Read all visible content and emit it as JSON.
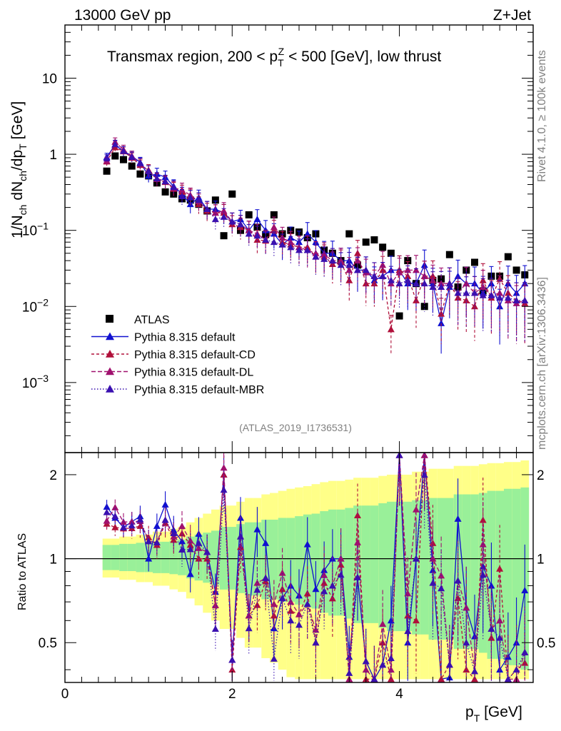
{
  "header": {
    "left": "13000 GeV pp",
    "right": "Z+Jet"
  },
  "side_labels": {
    "rivet": "Rivet 4.1.0, ≥ 100k events",
    "mcplots": "mcplots.cern.ch [arXiv:1306.3436]"
  },
  "plot_title": {
    "before": "Transmax region, 200 < p",
    "sub": "T",
    "sup": "Z",
    "after": " < 500 [GeV], low thrust"
  },
  "analysis_id": "(ATLAS_2019_I1736531)",
  "axes": {
    "ylabel_main": "1/N_ch dN_ch/dp_T [GeV]",
    "ylabel_ratio": "Ratio to ATLAS",
    "xlabel": "p_T [GeV]",
    "x_ticks": [
      "0",
      "2",
      "4"
    ],
    "x_tick_values": [
      0,
      2,
      4
    ],
    "y_ticks_main": [
      "10^-3",
      "10^-2",
      "10^-1",
      "1",
      "10"
    ],
    "y_ticks_ratio": [
      "0.5",
      "1",
      "2"
    ]
  },
  "legend": [
    {
      "label": "ATLAS",
      "color": "#000000",
      "marker": "square",
      "dash": ""
    },
    {
      "label": "Pythia 8.315 default",
      "color": "#1010d0",
      "marker": "triangle",
      "dash": ""
    },
    {
      "label": "Pythia 8.315 default-CD",
      "color": "#b0103a",
      "marker": "triangle",
      "dash": "4,3"
    },
    {
      "label": "Pythia 8.315 default-DL",
      "color": "#a0106e",
      "marker": "triangle",
      "dash": "6,3"
    },
    {
      "label": "Pythia 8.315 default-MBR",
      "color": "#3a10b0",
      "marker": "triangle",
      "dash": "1.5,2.5"
    }
  ],
  "chart_data": {
    "type": "scatter",
    "title": "Transmax region, 200 < pT^Z < 500 [GeV], low thrust",
    "xlabel": "pT [GeV]",
    "ylabel": "1/Nch dNch/dpT [GeV]",
    "xlim": [
      0,
      5.6
    ],
    "ylim": [
      0.00012,
      50
    ],
    "yscale": "log",
    "ratio_ylim": [
      0.36,
      2.4
    ],
    "x": [
      0.5,
      0.6,
      0.7,
      0.8,
      0.9,
      1.0,
      1.1,
      1.2,
      1.3,
      1.4,
      1.5,
      1.6,
      1.7,
      1.8,
      1.9,
      2.0,
      2.1,
      2.2,
      2.3,
      2.4,
      2.5,
      2.6,
      2.7,
      2.8,
      2.9,
      3.0,
      3.1,
      3.2,
      3.3,
      3.4,
      3.5,
      3.6,
      3.7,
      3.8,
      3.9,
      4.0,
      4.1,
      4.2,
      4.3,
      4.4,
      4.5,
      4.6,
      4.7,
      4.8,
      4.9,
      5.0,
      5.1,
      5.2,
      5.3,
      5.4,
      5.5
    ],
    "series": [
      {
        "name": "ATLAS",
        "values": [
          0.6,
          0.95,
          0.85,
          0.7,
          0.55,
          0.52,
          0.42,
          0.32,
          0.3,
          0.26,
          0.25,
          0.22,
          0.18,
          0.25,
          0.085,
          0.3,
          0.1,
          0.16,
          0.11,
          0.088,
          0.16,
          0.09,
          0.1,
          0.095,
          0.08,
          0.09,
          0.055,
          0.05,
          0.04,
          0.09,
          0.035,
          0.07,
          0.075,
          0.06,
          0.05,
          0.0075,
          0.04,
          0.02,
          0.01,
          0.022,
          0.023,
          0.048,
          0.018,
          0.03,
          0.038,
          0.016,
          0.025,
          0.025,
          0.045,
          0.03,
          0.026
        ]
      },
      {
        "name": "Pythia 8.315 default",
        "values": [
          0.92,
          1.33,
          1.1,
          0.95,
          0.78,
          0.52,
          0.55,
          0.5,
          0.38,
          0.3,
          0.22,
          0.27,
          0.19,
          0.19,
          0.17,
          0.13,
          0.14,
          0.1,
          0.14,
          0.1,
          0.09,
          0.065,
          0.08,
          0.07,
          0.09,
          0.07,
          0.05,
          0.05,
          0.04,
          0.04,
          0.03,
          0.03,
          0.022,
          0.025,
          0.03,
          0.03,
          0.02,
          0.02,
          0.035,
          0.02,
          0.006,
          0.018,
          0.025,
          0.02,
          0.02,
          0.015,
          0.02,
          0.01,
          0.02,
          0.015,
          0.02
        ]
      },
      {
        "name": "Pythia 8.315 default-CD",
        "values": [
          0.8,
          1.23,
          1.09,
          0.9,
          0.72,
          0.62,
          0.47,
          0.43,
          0.35,
          0.32,
          0.28,
          0.22,
          0.18,
          0.17,
          0.17,
          0.12,
          0.11,
          0.1,
          0.075,
          0.073,
          0.1,
          0.07,
          0.065,
          0.06,
          0.06,
          0.045,
          0.045,
          0.036,
          0.038,
          0.022,
          0.05,
          0.02,
          0.02,
          0.03,
          0.005,
          0.03,
          0.025,
          0.012,
          0.025,
          0.025,
          0.008,
          0.02,
          0.013,
          0.012,
          0.01,
          0.022,
          0.013,
          0.023,
          0.015,
          0.012,
          0.011
        ]
      },
      {
        "name": "Pythia 8.315 default-DL",
        "values": [
          0.82,
          1.45,
          1.15,
          0.95,
          0.75,
          0.6,
          0.48,
          0.44,
          0.36,
          0.34,
          0.29,
          0.24,
          0.19,
          0.17,
          0.18,
          0.13,
          0.12,
          0.1,
          0.09,
          0.075,
          0.11,
          0.08,
          0.07,
          0.06,
          0.055,
          0.05,
          0.048,
          0.04,
          0.04,
          0.03,
          0.04,
          0.028,
          0.025,
          0.035,
          0.02,
          0.028,
          0.03,
          0.03,
          0.025,
          0.022,
          0.02,
          0.02,
          0.015,
          0.02,
          0.015,
          0.018,
          0.014,
          0.015,
          0.012,
          0.011,
          0.012
        ]
      },
      {
        "name": "Pythia 8.315 default-MBR",
        "values": [
          0.88,
          1.35,
          1.1,
          0.92,
          0.76,
          0.6,
          0.48,
          0.44,
          0.37,
          0.28,
          0.27,
          0.25,
          0.19,
          0.14,
          0.15,
          0.13,
          0.12,
          0.09,
          0.085,
          0.075,
          0.07,
          0.065,
          0.06,
          0.055,
          0.055,
          0.045,
          0.042,
          0.04,
          0.035,
          0.035,
          0.03,
          0.03,
          0.025,
          0.025,
          0.022,
          0.02,
          0.022,
          0.02,
          0.02,
          0.018,
          0.018,
          0.02,
          0.015,
          0.015,
          0.015,
          0.014,
          0.014,
          0.013,
          0.013,
          0.012,
          0.012
        ]
      }
    ],
    "ratio": {
      "ylabel": "Ratio to ATLAS",
      "reference": 1,
      "band_green_halfwidth": [
        0.12,
        0.12,
        0.13,
        0.13,
        0.14,
        0.14,
        0.15,
        0.15,
        0.16,
        0.17,
        0.2,
        0.22,
        0.24,
        0.26,
        0.3,
        0.3,
        0.33,
        0.35,
        0.35,
        0.38,
        0.38,
        0.4,
        0.4,
        0.42,
        0.44,
        0.45,
        0.48,
        0.5,
        0.5,
        0.52,
        0.55,
        0.55,
        0.55,
        0.58,
        0.6,
        0.6,
        0.6,
        0.62,
        0.62,
        0.65,
        0.65,
        0.65,
        0.7,
        0.7,
        0.7,
        0.72,
        0.75,
        0.75,
        0.78,
        0.78,
        0.8
      ],
      "band_yellow_halfwidth": [
        0.18,
        0.18,
        0.2,
        0.2,
        0.22,
        0.22,
        0.25,
        0.25,
        0.28,
        0.3,
        0.35,
        0.4,
        0.45,
        0.5,
        0.55,
        0.55,
        0.6,
        0.65,
        0.65,
        0.7,
        0.72,
        0.75,
        0.78,
        0.8,
        0.82,
        0.85,
        0.88,
        0.9,
        0.9,
        0.92,
        0.95,
        0.95,
        0.95,
        0.98,
        1.0,
        1.0,
        1.0,
        1.05,
        1.05,
        1.1,
        1.1,
        1.1,
        1.15,
        1.15,
        1.15,
        1.18,
        1.2,
        1.2,
        1.22,
        1.22,
        1.25
      ]
    }
  }
}
